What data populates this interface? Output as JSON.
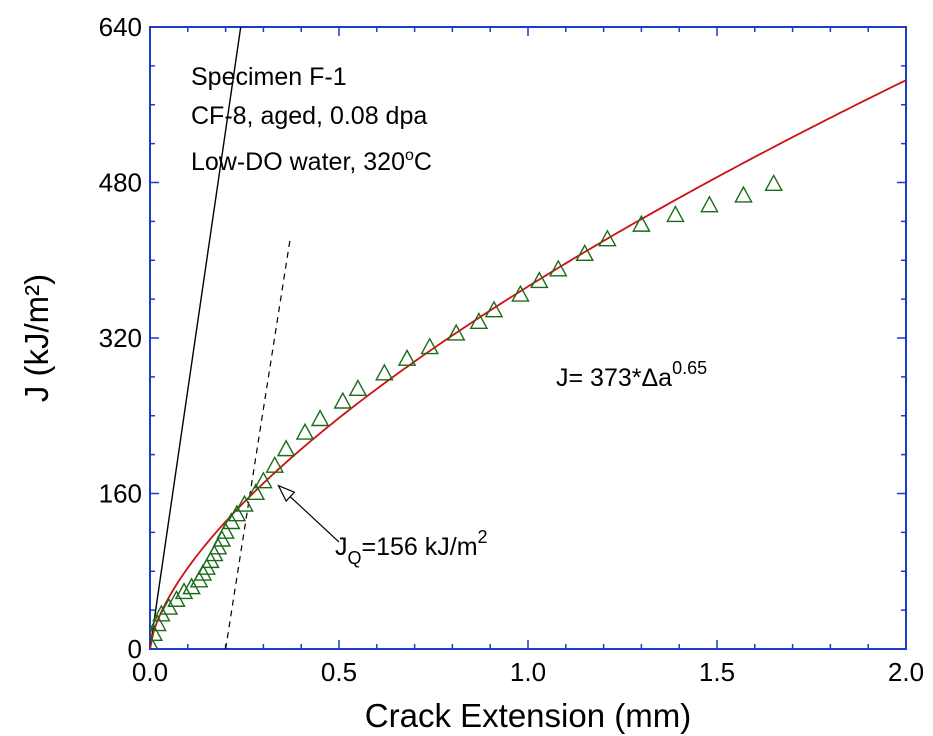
{
  "chart_data": {
    "type": "scatter",
    "xlabel": "Crack Extension (mm)",
    "ylabel": "J (kJ/m²)",
    "xlim": [
      0,
      2.0
    ],
    "ylim": [
      0,
      640
    ],
    "x_ticks": [
      "0.0",
      "0.5",
      "1.0",
      "1.5",
      "2.0"
    ],
    "y_ticks": [
      "0",
      "160",
      "320",
      "480",
      "640"
    ],
    "grid": false,
    "annotations": {
      "specimen": "Specimen F-1",
      "material": "CF-8, aged, 0.08 dpa",
      "environment_prefix": "Low-DO water, 320",
      "environment_sup": "o",
      "environment_suffix": "C",
      "fit_label": "J= 373*Δa",
      "fit_exponent": "0.65",
      "jq_J": "J",
      "jq_sub": "Q",
      "jq_value": "=156 kJ/m",
      "jq_sup": "2"
    },
    "series": [
      {
        "marker": "open-triangle",
        "color": "#1a6b1a",
        "x": [
          0.0,
          0.01,
          0.02,
          0.03,
          0.05,
          0.07,
          0.09,
          0.11,
          0.13,
          0.14,
          0.15,
          0.16,
          0.17,
          0.18,
          0.19,
          0.2,
          0.215,
          0.23,
          0.25,
          0.28,
          0.3,
          0.33,
          0.36,
          0.41,
          0.45,
          0.51,
          0.55,
          0.62,
          0.68,
          0.74,
          0.81,
          0.87,
          0.91,
          0.98,
          1.03,
          1.08,
          1.15,
          1.21,
          1.3,
          1.39,
          1.48,
          1.57,
          1.65
        ],
        "y": [
          5,
          15,
          25,
          35,
          42,
          50,
          58,
          63,
          70,
          77,
          83,
          90,
          97,
          104,
          112,
          120,
          130,
          138,
          148,
          160,
          172,
          188,
          205,
          222,
          236,
          254,
          267,
          283,
          298,
          310,
          324,
          336,
          348,
          364,
          378,
          390,
          406,
          421,
          436,
          446,
          456,
          466,
          478
        ]
      },
      {
        "type": "line",
        "color": "#cc1111",
        "formula": "J = 373*Δa^0.65",
        "x_range": [
          0,
          2.0
        ]
      },
      {
        "type": "line",
        "name": "blunting line",
        "color": "#000000",
        "x": [
          0.0,
          0.24
        ],
        "y": [
          0,
          640
        ]
      },
      {
        "type": "line",
        "name": "offset line",
        "color": "#000000",
        "dashed": true,
        "x": [
          0.2,
          0.37
        ],
        "y": [
          0,
          420
        ]
      }
    ],
    "jq_arrow": {
      "from": [
        0.5,
        110
      ],
      "to": [
        0.34,
        168
      ]
    }
  }
}
